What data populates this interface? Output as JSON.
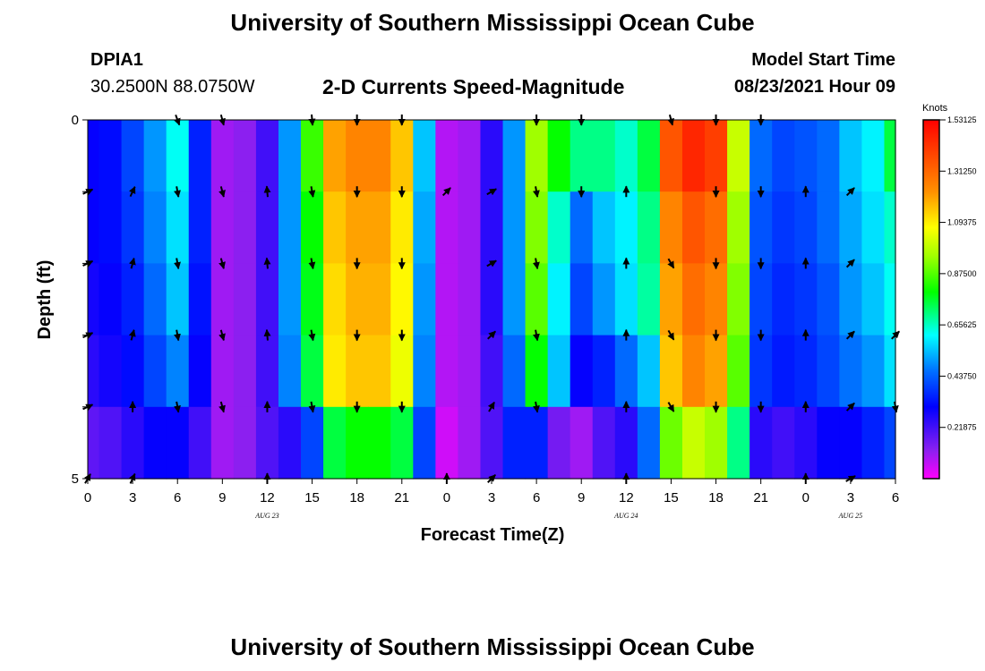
{
  "header": {
    "title": "University of Southern Mississippi Ocean Cube",
    "station": "DPIA1",
    "coordinates": "30.2500N  88.0750W",
    "variable_title": "2-D Currents Speed-Magnitude",
    "model_start_label": "Model Start Time",
    "model_start_value": "08/23/2021 Hour 09"
  },
  "footer": {
    "title": "University of Southern Mississippi Ocean Cube"
  },
  "colors": {
    "arrow": "#000000",
    "axis": "#000000"
  },
  "chart_data": {
    "type": "heatmap",
    "title": "2-D Currents Speed-Magnitude",
    "xlabel": "Forecast Time(Z)",
    "ylabel": "Depth (ft)",
    "xlim": [
      0,
      54
    ],
    "ylim": [
      0,
      5
    ],
    "y_ticks": [
      0,
      1,
      2,
      3,
      4,
      5
    ],
    "y_tick_labels": [
      "0",
      "",
      "",
      "",
      "",
      "5"
    ],
    "x_ticks": [
      0,
      3,
      6,
      9,
      12,
      15,
      18,
      21,
      24,
      27,
      30,
      33,
      36,
      39,
      42,
      45,
      48,
      51,
      54
    ],
    "x_tick_labels": [
      "0",
      "3",
      "6",
      "9",
      "12",
      "15",
      "18",
      "21",
      "0",
      "3",
      "6",
      "9",
      "12",
      "15",
      "18",
      "21",
      "0",
      "3",
      "6"
    ],
    "day_labels": [
      {
        "text": "AUG 23",
        "x": 12
      },
      {
        "text": "AUG 24",
        "x": 36
      },
      {
        "text": "AUG 25",
        "x": 51
      }
    ],
    "colorbar": {
      "unit": "Knots",
      "min": 0,
      "max": 1.53125,
      "tick_values": [
        0.21875,
        0.4375,
        0.65625,
        0.875,
        1.09375,
        1.3125,
        1.53125
      ],
      "tick_labels": [
        "0.21875",
        "0.43750",
        "0.65625",
        "0.87500",
        "1.09375",
        "1.31250",
        "1.53125"
      ]
    },
    "time_hours": [
      0,
      1.5,
      3,
      4.5,
      6,
      7.5,
      9,
      10.5,
      12,
      13.5,
      15,
      16.5,
      18,
      19.5,
      21,
      22.5,
      24,
      25.5,
      27,
      28.5,
      30,
      31.5,
      33,
      34.5,
      36,
      37.5,
      39,
      40.5,
      42,
      43.5,
      45,
      46.5,
      48,
      49.5,
      51,
      52.5,
      54
    ],
    "depth_rows": [
      "0-1",
      "1-2",
      "2-3",
      "3-4",
      "4-5"
    ],
    "speed_knots": [
      [
        0.3,
        0.32,
        0.4,
        0.5,
        0.62,
        0.35,
        0.1,
        0.12,
        0.22,
        0.5,
        0.85,
        1.2,
        1.25,
        1.25,
        1.15,
        0.55,
        0.08,
        0.1,
        0.25,
        0.5,
        0.95,
        0.8,
        0.7,
        0.7,
        0.65,
        0.75,
        1.35,
        1.45,
        1.4,
        1.0,
        0.45,
        0.4,
        0.42,
        0.45,
        0.55,
        0.6,
        0.75
      ],
      [
        0.3,
        0.32,
        0.38,
        0.48,
        0.58,
        0.35,
        0.1,
        0.12,
        0.22,
        0.5,
        0.8,
        1.15,
        1.2,
        1.2,
        1.1,
        0.52,
        0.08,
        0.1,
        0.25,
        0.5,
        0.92,
        0.65,
        0.45,
        0.55,
        0.6,
        0.7,
        1.25,
        1.35,
        1.3,
        0.95,
        0.42,
        0.38,
        0.4,
        0.45,
        0.52,
        0.58,
        0.65
      ],
      [
        0.28,
        0.3,
        0.35,
        0.45,
        0.55,
        0.33,
        0.1,
        0.12,
        0.22,
        0.5,
        0.78,
        1.12,
        1.18,
        1.18,
        1.08,
        0.5,
        0.08,
        0.1,
        0.25,
        0.5,
        0.88,
        0.6,
        0.4,
        0.5,
        0.58,
        0.68,
        1.2,
        1.3,
        1.25,
        0.92,
        0.4,
        0.36,
        0.38,
        0.42,
        0.5,
        0.55,
        0.62
      ],
      [
        0.25,
        0.28,
        0.32,
        0.4,
        0.48,
        0.3,
        0.1,
        0.12,
        0.22,
        0.48,
        0.75,
        1.1,
        1.15,
        1.15,
        1.05,
        0.48,
        0.08,
        0.1,
        0.22,
        0.45,
        0.8,
        0.55,
        0.3,
        0.35,
        0.45,
        0.55,
        1.15,
        1.25,
        1.2,
        0.88,
        0.38,
        0.34,
        0.36,
        0.4,
        0.46,
        0.5,
        0.58
      ],
      [
        0.18,
        0.2,
        0.25,
        0.3,
        0.3,
        0.22,
        0.1,
        0.12,
        0.2,
        0.25,
        0.4,
        0.75,
        0.8,
        0.8,
        0.75,
        0.4,
        0.05,
        0.1,
        0.2,
        0.35,
        0.35,
        0.15,
        0.1,
        0.2,
        0.25,
        0.45,
        0.9,
        1.0,
        0.95,
        0.7,
        0.25,
        0.22,
        0.25,
        0.3,
        0.3,
        0.35,
        0.4
      ]
    ],
    "arrow_depths": [
      0,
      1,
      2,
      3,
      4,
      5
    ],
    "arrow_columns": [
      {
        "t": 0,
        "dirs": [
          null,
          65,
          65,
          65,
          65,
          30
        ]
      },
      {
        "t": 3,
        "dirs": [
          null,
          25,
          15,
          15,
          0,
          25
        ]
      },
      {
        "t": 6,
        "dirs": [
          160,
          170,
          170,
          170,
          170,
          null
        ]
      },
      {
        "t": 9,
        "dirs": [
          165,
          165,
          165,
          165,
          165,
          null
        ]
      },
      {
        "t": 12,
        "dirs": [
          null,
          355,
          355,
          355,
          0,
          0
        ]
      },
      {
        "t": 15,
        "dirs": [
          175,
          170,
          170,
          170,
          170,
          null
        ]
      },
      {
        "t": 18,
        "dirs": [
          180,
          180,
          180,
          180,
          180,
          null
        ]
      },
      {
        "t": 21,
        "dirs": [
          180,
          180,
          180,
          180,
          180,
          null
        ]
      },
      {
        "t": 24,
        "dirs": [
          null,
          45,
          null,
          null,
          null,
          0
        ]
      },
      {
        "t": 27,
        "dirs": [
          null,
          60,
          60,
          45,
          30,
          45
        ]
      },
      {
        "t": 30,
        "dirs": [
          180,
          170,
          170,
          170,
          170,
          null
        ]
      },
      {
        "t": 33,
        "dirs": [
          180,
          180,
          null,
          null,
          null,
          null
        ]
      },
      {
        "t": 36,
        "dirs": [
          null,
          0,
          0,
          0,
          0,
          0
        ]
      },
      {
        "t": 39,
        "dirs": [
          165,
          null,
          150,
          150,
          150,
          null
        ]
      },
      {
        "t": 42,
        "dirs": [
          180,
          180,
          180,
          180,
          180,
          null
        ]
      },
      {
        "t": 45,
        "dirs": [
          180,
          180,
          180,
          180,
          180,
          null
        ]
      },
      {
        "t": 48,
        "dirs": [
          null,
          0,
          0,
          0,
          0,
          0
        ]
      },
      {
        "t": 51,
        "dirs": [
          null,
          45,
          45,
          45,
          45,
          60
        ]
      },
      {
        "t": 54,
        "dirs": [
          null,
          null,
          null,
          45,
          170,
          null
        ]
      }
    ]
  }
}
